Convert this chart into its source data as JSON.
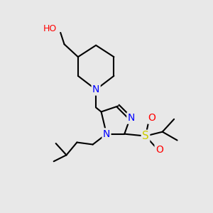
{
  "background_color": "#e8e8e8",
  "atom_colors": {
    "N": "#0000ff",
    "O": "#ff0000",
    "S": "#cccc00",
    "C": "#000000",
    "H": "#555555"
  },
  "figsize": [
    3.0,
    3.0
  ],
  "dpi": 100
}
